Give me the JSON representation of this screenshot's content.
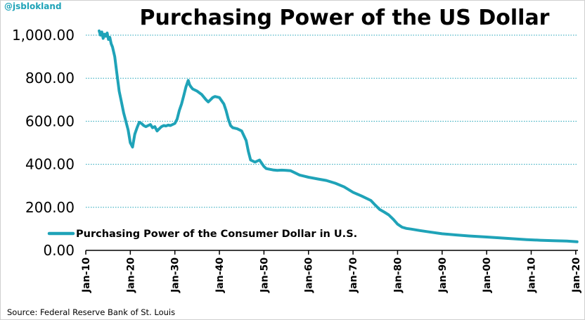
{
  "watermark": "@jsblokland",
  "source": "Source: Federal Reserve Bank of St. Louis",
  "colors": {
    "line": "#1fa3b8",
    "grid": "#1fa3b8",
    "axis": "#000000"
  },
  "chart_data": {
    "type": "line",
    "title": "Purchasing Power of the US Dollar",
    "xlabel": "",
    "ylabel": "",
    "ylim": [
      0,
      1000
    ],
    "xlim": [
      1910,
      2020.5
    ],
    "yticks": [
      0,
      200,
      400,
      600,
      800,
      1000
    ],
    "ytick_labels": [
      "0.00",
      "200.00",
      "400.00",
      "600.00",
      "800.00",
      "1,000.00"
    ],
    "xticks": [
      1910,
      1920,
      1930,
      1940,
      1950,
      1960,
      1970,
      1980,
      1990,
      2000,
      2010,
      2020
    ],
    "xtick_labels": [
      "Jan-10",
      "Jan-20",
      "Jan-30",
      "Jan-40",
      "Jan-50",
      "Jan-60",
      "Jan-70",
      "Jan-80",
      "Jan-90",
      "Jan-00",
      "Jan-10",
      "Jan-20"
    ],
    "grid": "horizontal dotted",
    "legend_position": "bottom-left",
    "series": [
      {
        "name": "Purchasing Power of the Consumer Dollar in U.S.",
        "x": [
          1913.0,
          1913.3,
          1913.6,
          1913.9,
          1914.2,
          1914.5,
          1914.8,
          1915.1,
          1915.4,
          1915.7,
          1916.0,
          1916.5,
          1917.0,
          1917.5,
          1918.0,
          1918.5,
          1919.0,
          1919.5,
          1920.0,
          1920.5,
          1921.0,
          1921.5,
          1922.0,
          1922.5,
          1923.0,
          1923.5,
          1924.0,
          1924.5,
          1925.0,
          1925.5,
          1926.0,
          1926.5,
          1927.0,
          1927.5,
          1928.0,
          1928.5,
          1929.0,
          1929.5,
          1930.0,
          1930.5,
          1931.0,
          1931.5,
          1932.0,
          1932.5,
          1933.0,
          1933.3,
          1933.6,
          1934.0,
          1935.0,
          1936.0,
          1937.0,
          1937.5,
          1938.0,
          1938.5,
          1939.0,
          1940.0,
          1941.0,
          1941.5,
          1942.0,
          1942.5,
          1943.0,
          1944.0,
          1945.0,
          1946.0,
          1946.5,
          1947.0,
          1948.0,
          1948.5,
          1949.0,
          1950.0,
          1950.5,
          1951.0,
          1952.0,
          1953.0,
          1954.0,
          1955.0,
          1956.0,
          1957.0,
          1958.0,
          1959.0,
          1960.0,
          1962.0,
          1964.0,
          1966.0,
          1968.0,
          1970.0,
          1972.0,
          1974.0,
          1975.0,
          1976.0,
          1977.0,
          1978.0,
          1979.0,
          1980.0,
          1981.0,
          1982.0,
          1983.0,
          1985.0,
          1987.0,
          1990.0,
          1993.0,
          1996.0,
          2000.0,
          2003.0,
          2006.0,
          2009.0,
          2012.0,
          2015.0,
          2018.0,
          2020.3
        ],
        "values": [
          1020,
          1000,
          1015,
          985,
          1005,
          995,
          1010,
          980,
          990,
          960,
          945,
          900,
          820,
          740,
          690,
          640,
          600,
          560,
          500,
          480,
          540,
          570,
          595,
          590,
          580,
          575,
          580,
          585,
          570,
          575,
          555,
          565,
          575,
          580,
          578,
          582,
          580,
          585,
          590,
          610,
          650,
          680,
          720,
          760,
          790,
          770,
          760,
          750,
          740,
          725,
          700,
          690,
          700,
          710,
          715,
          710,
          680,
          650,
          610,
          580,
          570,
          565,
          555,
          510,
          460,
          420,
          410,
          415,
          420,
          390,
          380,
          378,
          374,
          372,
          373,
          372,
          370,
          360,
          350,
          345,
          340,
          332,
          325,
          312,
          295,
          270,
          252,
          232,
          210,
          190,
          178,
          165,
          145,
          122,
          108,
          102,
          99,
          92,
          86,
          77,
          72,
          67,
          62,
          58,
          54,
          50,
          47,
          45,
          43,
          40
        ]
      }
    ]
  }
}
